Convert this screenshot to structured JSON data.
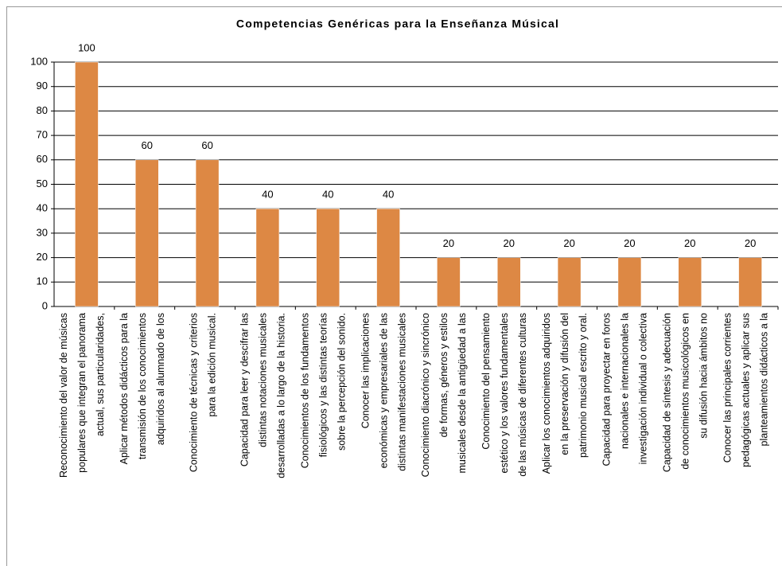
{
  "chart_data": {
    "type": "bar",
    "title": "Competencias Genéricas para la Enseñanza Músical",
    "categories": [
      [
        "Reconocimiento del valor de músicas",
        "populares que integran el panorama",
        "actual, sus particularidades,"
      ],
      [
        "Aplicar métodos didácticos para la",
        "transmisión de los conocimientos",
        "adquiridos al alumnado de los"
      ],
      [
        "Conocimiento de técnicas y criterios",
        "para la edición musical."
      ],
      [
        "Capacidad para leer y descifrar las",
        "distintas notaciones musicales",
        "desarrolladas a lo largo de la historia."
      ],
      [
        "Conocimientos de los fundamentos",
        "fisiológicos y las distintas teorías",
        "sobre la percepción del sonido."
      ],
      [
        "Conocer las implicaciones",
        "económicas y empresariales de las",
        "distintas manifestaciones musicales"
      ],
      [
        "Conocimiento diacrónico y sincrónico",
        "de formas, géneros y estilos",
        "musicales desde la antigüedad a las"
      ],
      [
        "Conocimiento del pensamiento",
        "estético y los valores fundamentales",
        "de las músicas de diferentes culturas"
      ],
      [
        "Aplicar los conocimientos adquiridos",
        "en la preservación y difusión del",
        "patrimonio musical escrito y oral."
      ],
      [
        "Capacidad para proyectar en foros",
        "nacionales e internacionales la",
        "investigación individual o colectiva"
      ],
      [
        "Capacidad de síntesis y adecuación",
        "de conocimientos musicológicos en",
        "su difusión hacia ámbitos no"
      ],
      [
        "Conocer las principales corrientes",
        "pedagógicas actuales y aplicar sus",
        "planteamientos didácticos a la"
      ]
    ],
    "values": [
      100,
      60,
      60,
      40,
      40,
      40,
      20,
      20,
      20,
      20,
      20,
      20
    ],
    "color": "#dd8844",
    "ylim": [
      0,
      100
    ],
    "yticks": [
      0,
      10,
      20,
      30,
      40,
      50,
      60,
      70,
      80,
      90,
      100
    ],
    "grid": true
  }
}
